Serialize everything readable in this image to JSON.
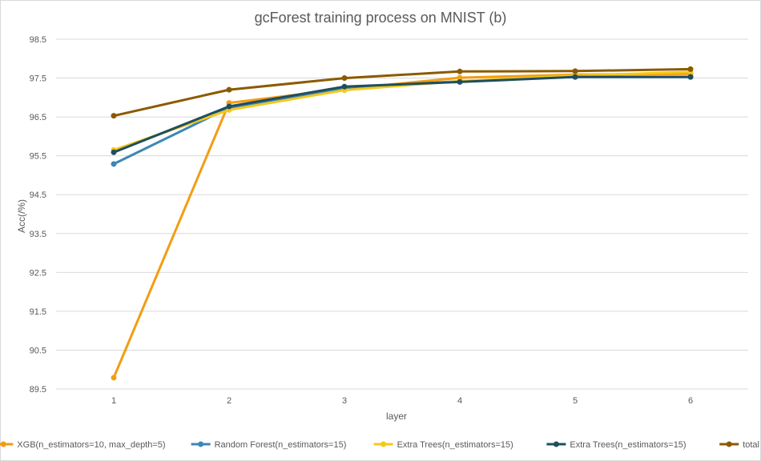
{
  "chart_data": {
    "type": "line",
    "title": "gcForest training process on MNIST (b)",
    "xlabel": "layer",
    "ylabel": "Acc(/%)",
    "categories": [
      "1",
      "2",
      "3",
      "4",
      "5",
      "6"
    ],
    "yticks": [
      "98.5",
      "97.5",
      "96.5",
      "95.5",
      "94.5",
      "93.5",
      "92.5",
      "91.5",
      "90.5",
      "89.5"
    ],
    "ylim": [
      89.5,
      98.5
    ],
    "grid": true,
    "legend_position": "bottom",
    "series": [
      {
        "name": "XGB(n_estimators=10, max_depth=5)",
        "color": "#f39c12",
        "values": [
          89.79,
          96.86,
          97.22,
          97.51,
          97.59,
          97.61
        ]
      },
      {
        "name": "Random Forest(n_estimators=15)",
        "color": "#3e87b5",
        "values": [
          95.29,
          96.74,
          97.24,
          97.42,
          97.53,
          97.53
        ]
      },
      {
        "name": "Extra Trees(n_estimators=15)",
        "color": "#f4c81c",
        "values": [
          95.65,
          96.68,
          97.19,
          97.42,
          97.56,
          97.66
        ]
      },
      {
        "name": "Extra Trees(n_estimators=15)",
        "color": "#1f4e5f",
        "values": [
          95.59,
          96.77,
          97.28,
          97.4,
          97.53,
          97.53
        ]
      },
      {
        "name": "total",
        "color": "#8b5a00",
        "values": [
          96.53,
          97.2,
          97.5,
          97.67,
          97.68,
          97.73
        ]
      }
    ]
  }
}
